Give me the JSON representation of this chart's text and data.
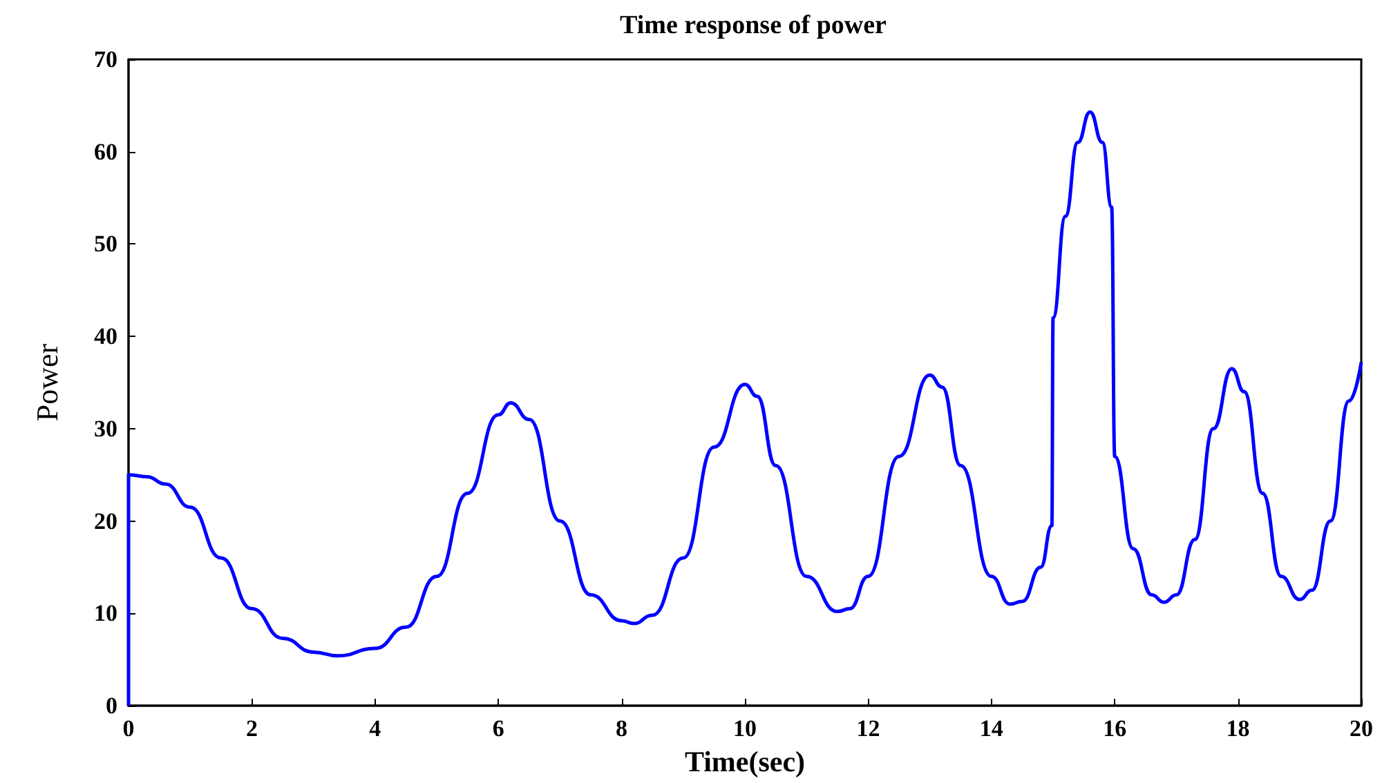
{
  "chart_data": {
    "type": "line",
    "title": "Time response of power",
    "xlabel": "Time(sec)",
    "ylabel": "Power",
    "xlim": [
      0,
      20
    ],
    "xticks": [
      0,
      2,
      4,
      6,
      8,
      10,
      12,
      14,
      16,
      18,
      20
    ],
    "ylim": [
      0,
      70
    ],
    "yticks": [
      0,
      10,
      20,
      30,
      40,
      50,
      60,
      70
    ],
    "grid": false,
    "marker": "none",
    "line_style": "solid",
    "series": [
      {
        "color": "#0000ff",
        "x": [
          0,
          0,
          0.3,
          0.6,
          1,
          1.5,
          2,
          2.5,
          3,
          3.4,
          4,
          4.5,
          5,
          5.5,
          6,
          6.2,
          6.5,
          7,
          7.5,
          8,
          8.2,
          8.5,
          9,
          9.5,
          10,
          10.2,
          10.5,
          11,
          11.5,
          11.7,
          12,
          12.5,
          13,
          13.2,
          13.5,
          14,
          14.3,
          14.5,
          14.8,
          14.98,
          15,
          15.2,
          15.4,
          15.6,
          15.8,
          15.95,
          16,
          16.3,
          16.6,
          16.8,
          17,
          17.3,
          17.6,
          17.9,
          18.1,
          18.4,
          18.7,
          19,
          19.2,
          19.5,
          19.8,
          20
        ],
        "values": [
          0,
          25,
          24.8,
          24,
          21.5,
          16,
          10.5,
          7.3,
          5.8,
          5.4,
          6.2,
          8.5,
          14,
          23,
          31.5,
          32.8,
          31,
          20,
          12,
          9.2,
          8.9,
          9.8,
          16,
          28,
          34.8,
          33.5,
          26,
          14,
          10.2,
          10.5,
          14,
          27,
          35.8,
          34.5,
          26,
          14,
          11,
          11.3,
          15,
          19.5,
          42,
          53,
          61,
          64.3,
          61,
          54,
          27,
          17,
          12,
          11.2,
          12,
          18,
          30,
          36.5,
          34,
          23,
          14,
          11.5,
          12.5,
          20,
          33,
          37.2
        ]
      }
    ]
  }
}
